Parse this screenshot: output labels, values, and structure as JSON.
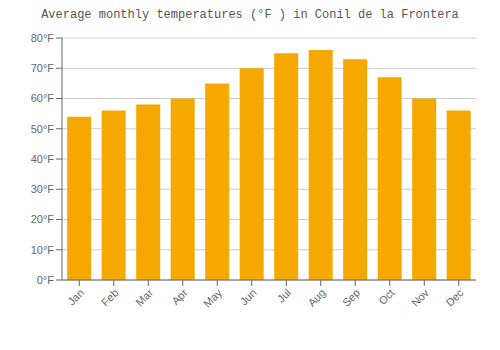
{
  "chart_data": {
    "type": "bar",
    "title": "Average monthly temperatures (°F ) in Conil de la Frontera",
    "categories": [
      "Jan",
      "Feb",
      "Mar",
      "Apr",
      "May",
      "Jun",
      "Jul",
      "Aug",
      "Sep",
      "Oct",
      "Nov",
      "Dec"
    ],
    "values": [
      54,
      56,
      58,
      60,
      65,
      70,
      75,
      76,
      73,
      67,
      60,
      56
    ],
    "color": "#F5A800",
    "ylim": [
      0,
      80
    ],
    "yticks": [
      {
        "value": 0,
        "label": "0°F"
      },
      {
        "value": 10,
        "label": "10°F"
      },
      {
        "value": 20,
        "label": "20°F"
      },
      {
        "value": 30,
        "label": "30°F"
      },
      {
        "value": 40,
        "label": "40°F"
      },
      {
        "value": 50,
        "label": "50°F"
      },
      {
        "value": 60,
        "label": "60°F"
      },
      {
        "value": 70,
        "label": "70°F"
      },
      {
        "value": 80,
        "label": "80°F"
      }
    ],
    "grid": true
  }
}
